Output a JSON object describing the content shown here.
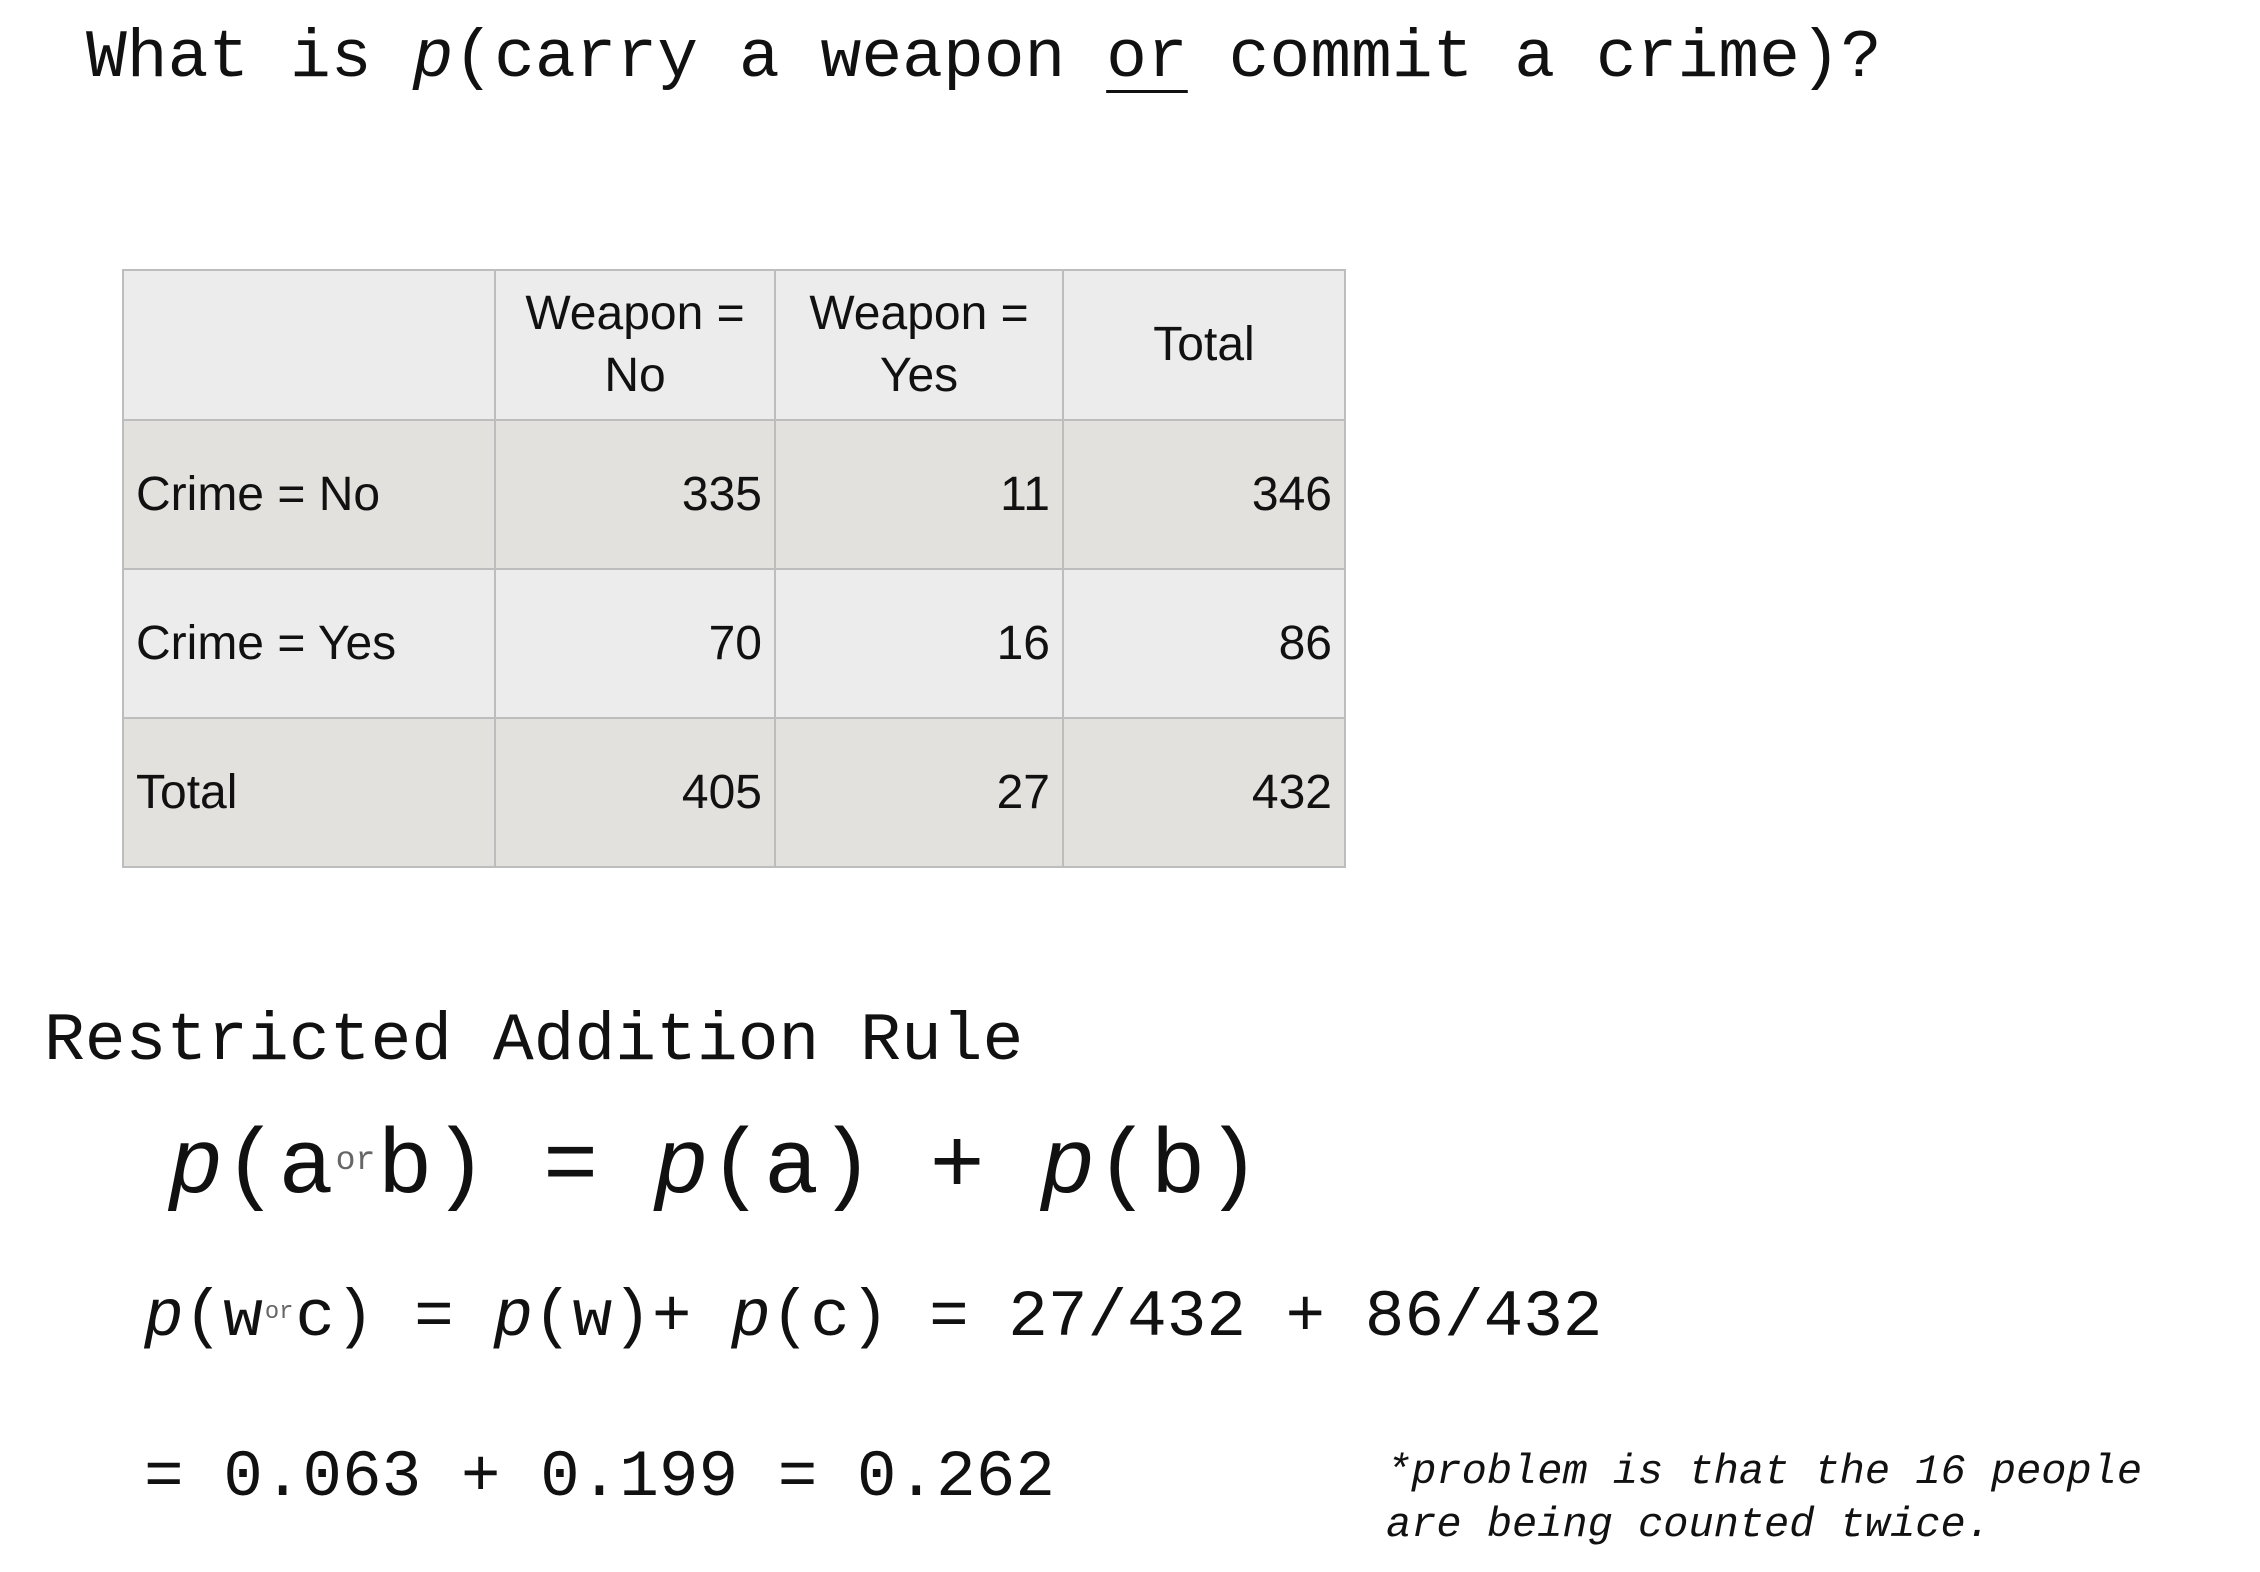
{
  "question": {
    "prefix": "What is ",
    "p": "p",
    "mid": "(carry a weapon ",
    "or": "or",
    "suffix": " commit a crime)?"
  },
  "table": {
    "headers": [
      "",
      "Weapon = No",
      "Weapon = Yes",
      "Total"
    ],
    "header_lines": [
      [
        "",
        ""
      ],
      [
        "Weapon =",
        "No"
      ],
      [
        "Weapon =",
        "Yes"
      ],
      [
        "Total",
        ""
      ]
    ],
    "rows": [
      {
        "label": "Crime = No",
        "values": [
          "335",
          "11",
          "346"
        ]
      },
      {
        "label": "Crime = Yes",
        "values": [
          "70",
          "16",
          "86"
        ]
      },
      {
        "label": "Total",
        "values": [
          "405",
          "27",
          "432"
        ]
      }
    ]
  },
  "rule": {
    "title": "Restricted Addition Rule",
    "formula1": {
      "p1": "p",
      "a1": "(a",
      "or": "or",
      "b1": "b)",
      "eq": " = ",
      "p2": "p",
      "a2": "(a)",
      "plus": " + ",
      "p3": "p",
      "b2": "(b)"
    },
    "formula2": {
      "p1": "p",
      "w1": "(w",
      "or": "or",
      "c1": "c)",
      "eq": " = ",
      "p2": "p",
      "w2": "(w)+ ",
      "p3": "p",
      "c2": "(c)",
      "rhs": " = 27/432 + 86/432"
    },
    "formula3": "= 0.063 + 0.199 = 0.262",
    "note": "*problem is that the 16 people\nare being counted twice."
  }
}
